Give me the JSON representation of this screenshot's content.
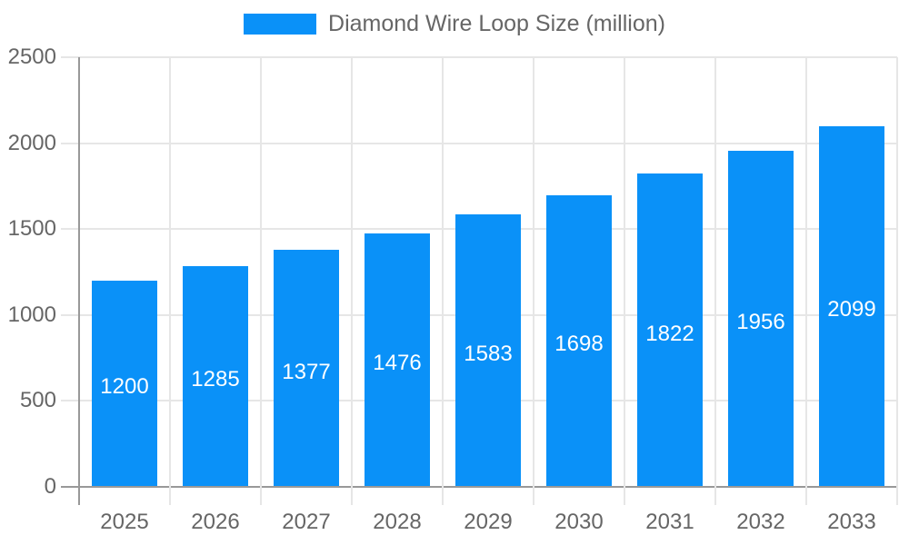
{
  "chart_data": {
    "type": "bar",
    "title": "Diamond Wire Loop Size (million)",
    "legend": {
      "position": "top",
      "label": "Diamond Wire Loop Size (million)"
    },
    "categories": [
      "2025",
      "2026",
      "2027",
      "2028",
      "2029",
      "2030",
      "2031",
      "2032",
      "2033"
    ],
    "values": [
      1200,
      1285,
      1377,
      1476,
      1583,
      1698,
      1822,
      1956,
      2099
    ],
    "xlabel": "",
    "ylabel": "",
    "ylim": [
      0,
      2500
    ],
    "ytick_step": 500,
    "ytick_labels": [
      "0",
      "500",
      "1000",
      "1500",
      "2000",
      "2500"
    ],
    "grid": true,
    "show_bar_labels": true,
    "colors": {
      "bar": "#0a91f8",
      "bar_label": "#ffffff",
      "axis_text": "#666666",
      "legend_text": "#666666",
      "grid": "#e6e6e6",
      "axis_line": "#999999",
      "background": "#ffffff"
    }
  }
}
